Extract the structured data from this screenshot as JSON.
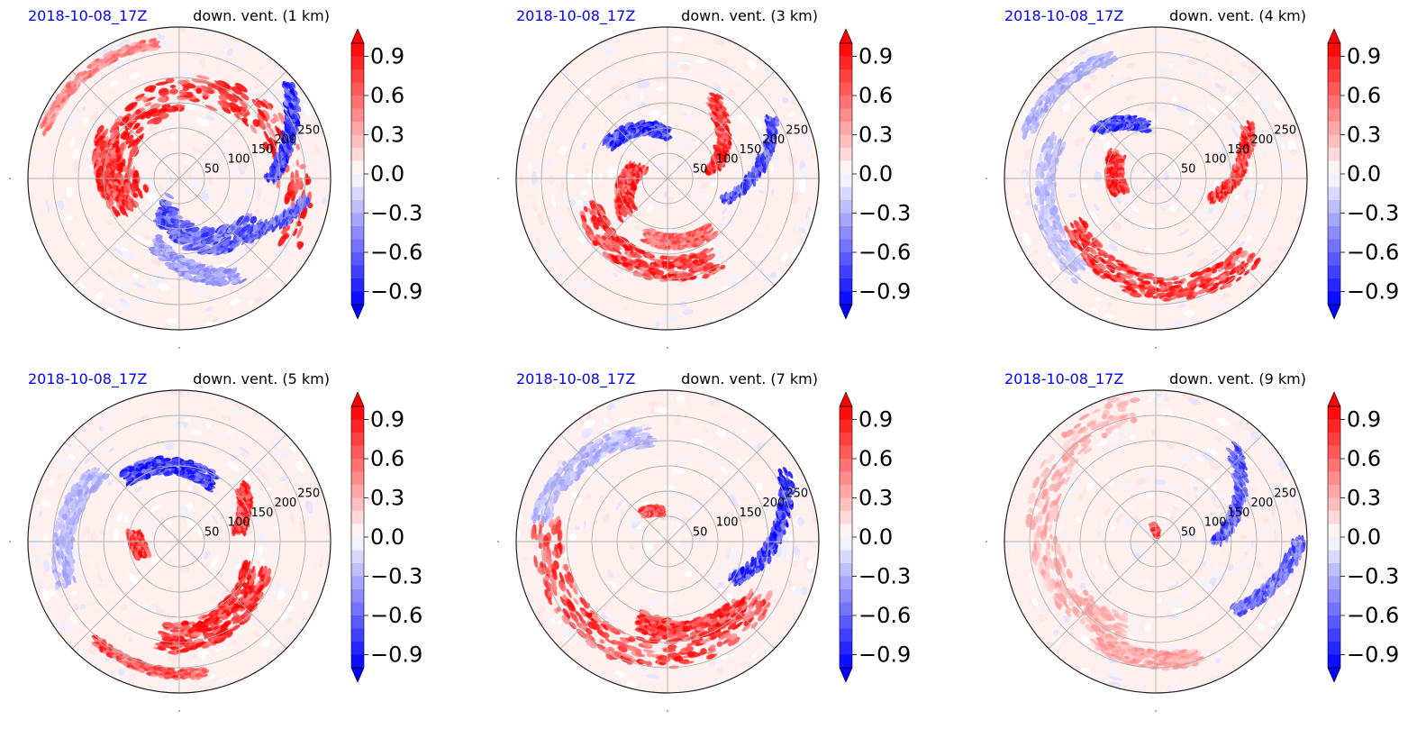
{
  "colors": {
    "date_label": "#0000ff",
    "positive": "#ff0000",
    "negative": "#0000ff",
    "neutral": "#ffffff",
    "grid": "#b0b0b0",
    "frame": "#222222"
  },
  "chart_data": [
    {
      "type": "polar-contourf",
      "date_label": "2018-10-08_17Z",
      "title": "down. vent. (1 km)",
      "radial_ticks": [
        "50",
        "100",
        "150",
        "200",
        "250"
      ],
      "radial_tick_values": [
        50,
        100,
        150,
        200,
        250
      ],
      "colorbar": {
        "ticks": [
          "0.9",
          "0.6",
          "0.3",
          "0.0",
          "−0.3",
          "−0.6",
          "−0.9"
        ],
        "tick_values": [
          0.9,
          0.6,
          0.3,
          0.0,
          -0.3,
          -0.6,
          -0.9
        ],
        "range": [
          -1,
          1
        ],
        "extend": "both",
        "colormap": "bwr"
      },
      "features": [
        {
          "sign": 1,
          "a0": -30,
          "a1": 200,
          "r0": 0.82,
          "r1": 0.32,
          "w": 0.13,
          "s": 1.0
        },
        {
          "sign": 1,
          "a0": 150,
          "a1": 210,
          "r0": 0.55,
          "r1": 0.4,
          "w": 0.09,
          "s": 0.9
        },
        {
          "sign": -1,
          "a0": 240,
          "a1": 330,
          "r0": 0.22,
          "r1": 0.6,
          "w": 0.11,
          "s": 0.75
        },
        {
          "sign": -1,
          "a0": 250,
          "a1": 300,
          "r0": 0.45,
          "r1": 0.75,
          "w": 0.07,
          "s": 0.45
        },
        {
          "sign": -1,
          "a0": 0,
          "a1": 40,
          "r0": 0.6,
          "r1": 0.95,
          "w": 0.05,
          "s": 0.9
        },
        {
          "sign": -1,
          "a0": 320,
          "a1": 350,
          "r0": 0.55,
          "r1": 0.85,
          "w": 0.04,
          "s": 0.7
        },
        {
          "sign": 1,
          "a0": 100,
          "a1": 160,
          "r0": 0.9,
          "r1": 0.95,
          "w": 0.04,
          "s": 0.55
        }
      ]
    },
    {
      "type": "polar-contourf",
      "date_label": "2018-10-08_17Z",
      "title": "down. vent. (3 km)",
      "radial_ticks": [
        "50",
        "100",
        "150",
        "200",
        "250"
      ],
      "radial_tick_values": [
        50,
        100,
        150,
        200,
        250
      ],
      "colorbar": {
        "ticks": [
          "0.9",
          "0.6",
          "0.3",
          "0.0",
          "−0.3",
          "−0.6",
          "−0.9"
        ],
        "tick_values": [
          0.9,
          0.6,
          0.3,
          0.0,
          -0.3,
          -0.6,
          -0.9
        ],
        "range": [
          -1,
          1
        ],
        "extend": "both",
        "colormap": "bwr"
      },
      "features": [
        {
          "sign": 1,
          "a0": 200,
          "a1": 300,
          "r0": 0.55,
          "r1": 0.62,
          "w": 0.1,
          "s": 0.9
        },
        {
          "sign": 1,
          "a0": 160,
          "a1": 220,
          "r0": 0.2,
          "r1": 0.35,
          "w": 0.08,
          "s": 0.95
        },
        {
          "sign": -1,
          "a0": 90,
          "a1": 150,
          "r0": 0.3,
          "r1": 0.45,
          "w": 0.06,
          "s": 0.9
        },
        {
          "sign": 1,
          "a0": 10,
          "a1": 60,
          "r0": 0.3,
          "r1": 0.6,
          "w": 0.06,
          "s": 0.95
        },
        {
          "sign": -1,
          "a0": -20,
          "a1": 30,
          "r0": 0.4,
          "r1": 0.8,
          "w": 0.04,
          "s": 0.8
        },
        {
          "sign": 1,
          "a0": 250,
          "a1": 310,
          "r0": 0.4,
          "r1": 0.45,
          "w": 0.06,
          "s": 0.7
        }
      ]
    },
    {
      "type": "polar-contourf",
      "date_label": "2018-10-08_17Z",
      "title": "down. vent. (4 km)",
      "radial_ticks": [
        "50",
        "100",
        "150",
        "200",
        "250"
      ],
      "radial_tick_values": [
        50,
        100,
        150,
        200,
        250
      ],
      "colorbar": {
        "ticks": [
          "0.9",
          "0.6",
          "0.3",
          "0.0",
          "−0.3",
          "−0.6",
          "−0.9"
        ],
        "tick_values": [
          0.9,
          0.6,
          0.3,
          0.0,
          -0.3,
          -0.6,
          -0.9
        ],
        "range": [
          -1,
          1
        ],
        "extend": "both",
        "colormap": "bwr"
      },
      "features": [
        {
          "sign": 1,
          "a0": 210,
          "a1": 320,
          "r0": 0.62,
          "r1": 0.8,
          "w": 0.1,
          "s": 0.95
        },
        {
          "sign": 1,
          "a0": 150,
          "a1": 200,
          "r0": 0.3,
          "r1": 0.25,
          "w": 0.07,
          "s": 0.95
        },
        {
          "sign": 1,
          "a0": -20,
          "a1": 30,
          "r0": 0.4,
          "r1": 0.7,
          "w": 0.05,
          "s": 0.9
        },
        {
          "sign": -1,
          "a0": 100,
          "a1": 140,
          "r0": 0.35,
          "r1": 0.5,
          "w": 0.05,
          "s": 0.85
        },
        {
          "sign": -1,
          "a0": 160,
          "a1": 230,
          "r0": 0.7,
          "r1": 0.8,
          "w": 0.08,
          "s": 0.3
        },
        {
          "sign": -1,
          "a0": 110,
          "a1": 160,
          "r0": 0.85,
          "r1": 0.9,
          "w": 0.05,
          "s": 0.35
        }
      ]
    },
    {
      "type": "polar-contourf",
      "date_label": "2018-10-08_17Z",
      "title": "down. vent. (5 km)",
      "radial_ticks": [
        "50",
        "100",
        "150",
        "200",
        "250"
      ],
      "radial_tick_values": [
        50,
        100,
        150,
        200,
        250
      ],
      "colorbar": {
        "ticks": [
          "0.9",
          "0.6",
          "0.3",
          "0.0",
          "−0.3",
          "−0.6",
          "−0.9"
        ],
        "tick_values": [
          0.9,
          0.6,
          0.3,
          0.0,
          -0.3,
          -0.6,
          -0.9
        ],
        "range": [
          -1,
          1
        ],
        "extend": "both",
        "colormap": "bwr"
      },
      "features": [
        {
          "sign": 1,
          "a0": 260,
          "a1": 340,
          "r0": 0.65,
          "r1": 0.55,
          "w": 0.12,
          "s": 1.0
        },
        {
          "sign": 1,
          "a0": 170,
          "a1": 200,
          "r0": 0.3,
          "r1": 0.25,
          "w": 0.06,
          "s": 0.95
        },
        {
          "sign": 1,
          "a0": 10,
          "a1": 40,
          "r0": 0.4,
          "r1": 0.55,
          "w": 0.05,
          "s": 0.9
        },
        {
          "sign": -1,
          "a0": 60,
          "a1": 130,
          "r0": 0.45,
          "r1": 0.55,
          "w": 0.07,
          "s": 0.95
        },
        {
          "sign": -1,
          "a0": 140,
          "a1": 200,
          "r0": 0.7,
          "r1": 0.8,
          "w": 0.08,
          "s": 0.35
        },
        {
          "sign": 1,
          "a0": 230,
          "a1": 280,
          "r0": 0.85,
          "r1": 0.88,
          "w": 0.04,
          "s": 0.8
        }
      ]
    },
    {
      "type": "polar-contourf",
      "date_label": "2018-10-08_17Z",
      "title": "down. vent. (7 km)",
      "radial_ticks": [
        "50",
        "100",
        "150",
        "200",
        "250"
      ],
      "radial_tick_values": [
        50,
        100,
        150,
        200,
        250
      ],
      "colorbar": {
        "ticks": [
          "0.9",
          "0.6",
          "0.3",
          "0.0",
          "−0.3",
          "−0.6",
          "−0.9"
        ],
        "tick_values": [
          0.9,
          0.6,
          0.3,
          0.0,
          -0.3,
          -0.6,
          -0.9
        ],
        "range": [
          -1,
          1
        ],
        "extend": "both",
        "colormap": "bwr"
      },
      "features": [
        {
          "sign": 1,
          "a0": 170,
          "a1": 330,
          "r0": 0.8,
          "r1": 0.7,
          "w": 0.12,
          "s": 0.85
        },
        {
          "sign": 1,
          "a0": 250,
          "a1": 320,
          "r0": 0.55,
          "r1": 0.65,
          "w": 0.08,
          "s": 0.9
        },
        {
          "sign": 1,
          "a0": 100,
          "a1": 130,
          "r0": 0.2,
          "r1": 0.25,
          "w": 0.04,
          "s": 0.8
        },
        {
          "sign": -1,
          "a0": -30,
          "a1": 30,
          "r0": 0.5,
          "r1": 0.9,
          "w": 0.05,
          "s": 0.9
        },
        {
          "sign": -1,
          "a0": 100,
          "a1": 170,
          "r0": 0.7,
          "r1": 0.85,
          "w": 0.08,
          "s": 0.35
        }
      ]
    },
    {
      "type": "polar-contourf",
      "date_label": "2018-10-08_17Z",
      "title": "down. vent. (9 km)",
      "radial_ticks": [
        "50",
        "100",
        "150",
        "200",
        "250"
      ],
      "radial_tick_values": [
        50,
        100,
        150,
        200,
        250
      ],
      "colorbar": {
        "ticks": [
          "0.9",
          "0.6",
          "0.3",
          "0.0",
          "−0.3",
          "−0.6",
          "−0.9"
        ],
        "tick_values": [
          0.9,
          0.6,
          0.3,
          0.0,
          -0.3,
          -0.6,
          -0.9
        ],
        "range": [
          -1,
          1
        ],
        "extend": "both",
        "colormap": "bwr"
      },
      "features": [
        {
          "sign": 1,
          "a0": 100,
          "a1": 250,
          "r0": 0.9,
          "r1": 0.6,
          "w": 0.12,
          "s": 0.35
        },
        {
          "sign": 1,
          "a0": 240,
          "a1": 290,
          "r0": 0.75,
          "r1": 0.8,
          "w": 0.07,
          "s": 0.4
        },
        {
          "sign": -1,
          "a0": 0,
          "a1": 50,
          "r0": 0.4,
          "r1": 0.8,
          "w": 0.05,
          "s": 0.75
        },
        {
          "sign": -1,
          "a0": -40,
          "a1": 0,
          "r0": 0.7,
          "r1": 0.95,
          "w": 0.05,
          "s": 0.7
        },
        {
          "sign": 1,
          "a0": 80,
          "a1": 100,
          "r0": 0.05,
          "r1": 0.1,
          "w": 0.03,
          "s": 0.9
        }
      ]
    }
  ]
}
